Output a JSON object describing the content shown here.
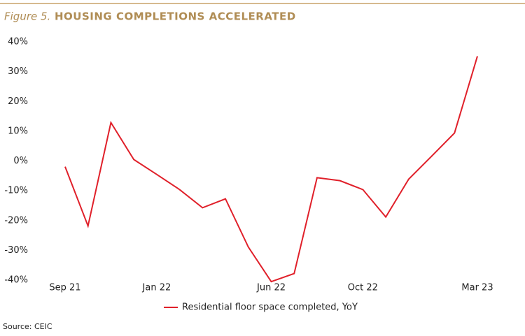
{
  "chart_data": {
    "type": "line",
    "figure_label": "Figure 5.",
    "title": "HOUSING COMPLETIONS ACCELERATED",
    "source": "Source: CEIC",
    "categories": [
      "Sep 21",
      null,
      null,
      null,
      "Jan 22",
      null,
      null,
      null,
      null,
      "Jun 22",
      null,
      null,
      null,
      "Oct 22",
      null,
      null,
      null,
      null,
      "Mar 23"
    ],
    "series": [
      {
        "name": "Residential floor space completed, YoY",
        "color": "#e0202a",
        "values": [
          -1.9,
          -21.8,
          12.9,
          0.5,
          -4.5,
          -9.6,
          -15.7,
          -12.7,
          -28.9,
          -40.5,
          -37.8,
          -5.6,
          -6.6,
          -9.6,
          -18.8,
          -6.1,
          1.6,
          9.4,
          35.2
        ]
      }
    ],
    "ylim": [
      -40,
      40
    ],
    "yticks": [
      {
        "value": 40,
        "label": "40%"
      },
      {
        "value": 30,
        "label": "30%"
      },
      {
        "value": 20,
        "label": "20%"
      },
      {
        "value": 10,
        "label": "10%"
      },
      {
        "value": 0,
        "label": "0%"
      },
      {
        "value": -10,
        "label": "-10%"
      },
      {
        "value": -20,
        "label": "-20%"
      },
      {
        "value": -30,
        "label": "-30%"
      },
      {
        "value": -40,
        "label": "-40%"
      }
    ],
    "grid": false,
    "legend": "bottom"
  }
}
